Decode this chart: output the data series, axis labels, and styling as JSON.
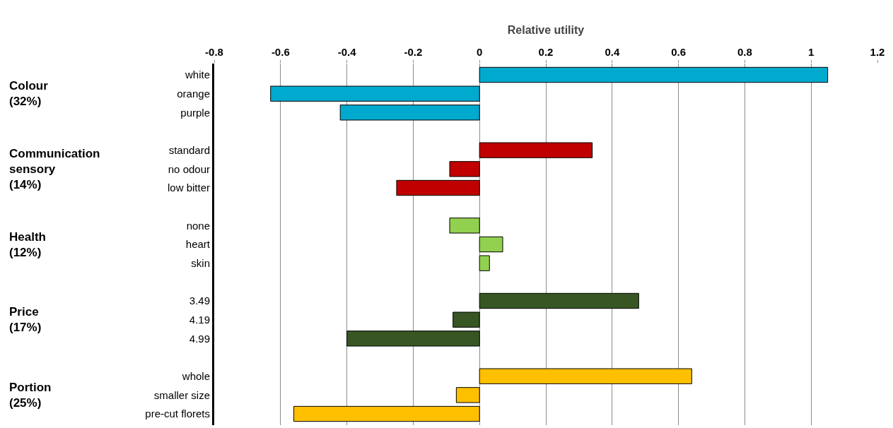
{
  "chart_data": {
    "type": "bar",
    "orientation": "horizontal",
    "xlabel": "Relative utility",
    "categories": [
      "white",
      "orange",
      "purple",
      null,
      "standard",
      "no odour",
      "low bitter",
      null,
      "none",
      "heart",
      "skin",
      null,
      "3.49",
      "4.19",
      "4.99",
      null,
      "whole",
      "smaller size",
      "pre-cut florets"
    ],
    "values": [
      1.05,
      -0.63,
      -0.42,
      null,
      0.34,
      -0.09,
      -0.25,
      null,
      -0.09,
      0.07,
      0.03,
      null,
      0.48,
      -0.08,
      -0.4,
      null,
      0.64,
      -0.07,
      -0.56
    ],
    "colors": [
      "#00a9ce",
      "#00a9ce",
      "#00a9ce",
      null,
      "#c00000",
      "#c00000",
      "#c00000",
      null,
      "#92d050",
      "#92d050",
      "#92d050",
      null,
      "#375623",
      "#375623",
      "#375623",
      null,
      "#ffc000",
      "#ffc000",
      "#ffc000"
    ],
    "xlim": [
      -0.8,
      1.2
    ],
    "xticks": [
      -0.8,
      -0.6,
      -0.4,
      -0.2,
      0,
      0.2,
      0.4,
      0.6,
      0.8,
      1,
      1.2
    ],
    "grid": "x",
    "annotations": [
      "Colour\n(32%)",
      "Communication\nsensory\n(14%)",
      "Health\n(12%)",
      "Price\n(17%)",
      "Portion\n(25%)"
    ]
  }
}
